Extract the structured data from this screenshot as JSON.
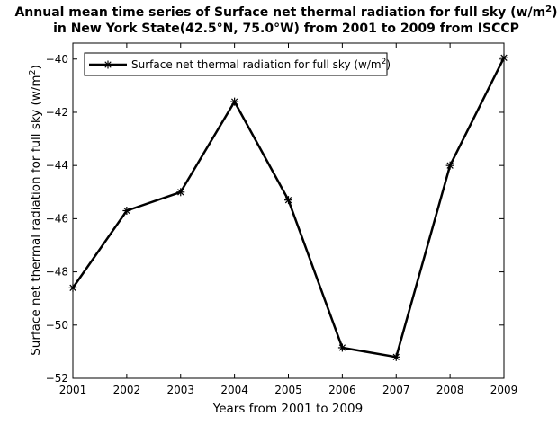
{
  "chart_data": {
    "type": "line",
    "title_line1": "Annual mean time series of Surface net thermal radiation for full sky (w/m",
    "title_line1_sup": "2",
    "title_line1_end": ")",
    "title_line2": "in New York State(42.5°N, 75.0°W) from 2001 to 2009 from ISCCP",
    "xlabel": "Years from 2001 to 2009",
    "ylabel": "Surface net thermal radiation for full sky (w/m",
    "ylabel_sup": "2",
    "ylabel_end": ")",
    "x": [
      2001,
      2002,
      2003,
      2004,
      2005,
      2006,
      2007,
      2008,
      2009
    ],
    "xlim": [
      2001,
      2009
    ],
    "ylim": [
      -52,
      -39.4
    ],
    "yticks": [
      -52,
      -50,
      -48,
      -46,
      -44,
      -42,
      -40
    ],
    "grid": false,
    "legend_position": "top-left",
    "series": [
      {
        "name": "Surface net thermal radiation for full sky (w/m",
        "name_sup": "2",
        "name_end": ")",
        "color": "#000000",
        "marker": "asterisk",
        "values": [
          -48.6,
          -45.7,
          -45.0,
          -41.6,
          -45.3,
          -50.85,
          -51.2,
          -44.0,
          -39.95
        ]
      }
    ]
  }
}
